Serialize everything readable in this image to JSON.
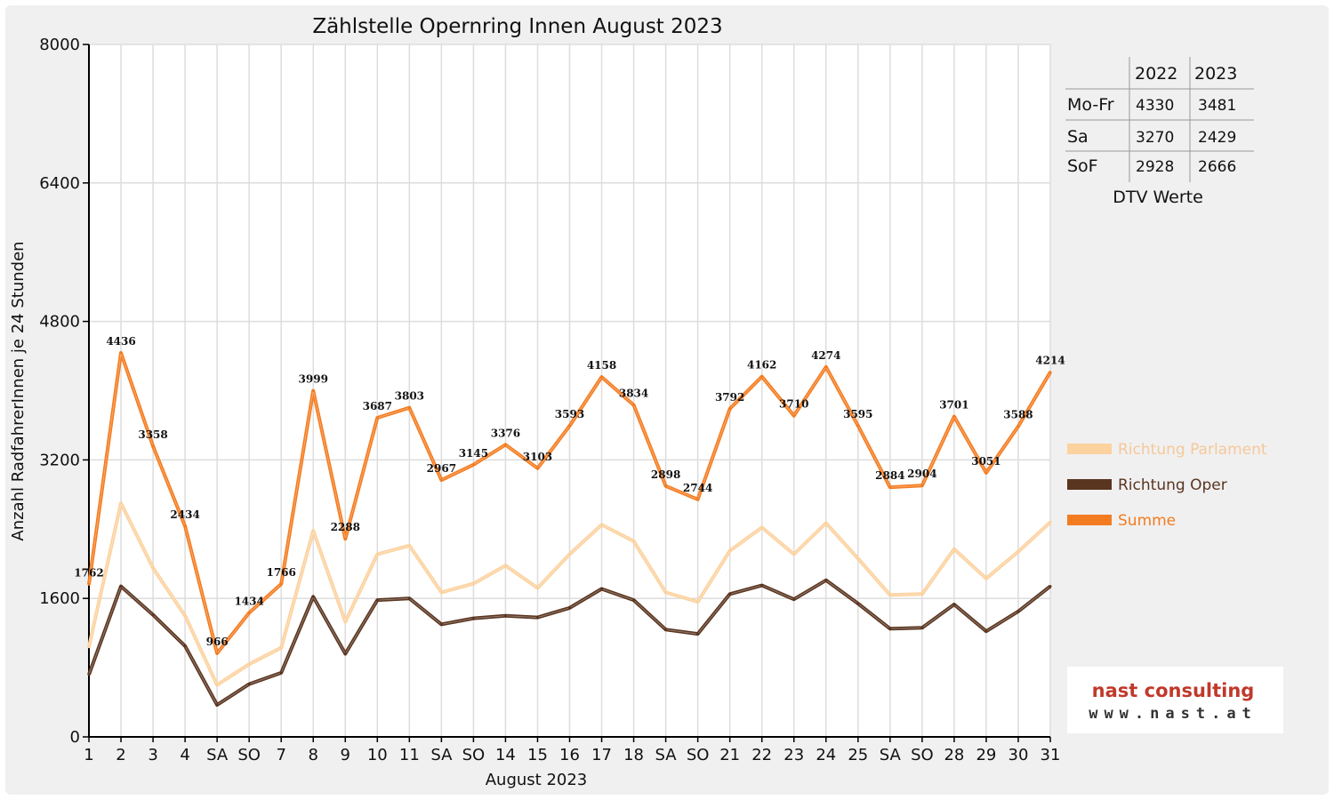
{
  "chart_data": {
    "type": "line",
    "title": "Zählstelle Opernring Innen August 2023",
    "xlabel": "August 2023",
    "ylabel": "Anzahl RadfahrerInnen je 24 Stunden",
    "ylim": [
      0,
      8000
    ],
    "yticks": [
      0,
      1600,
      3200,
      4800,
      6400,
      8000
    ],
    "grid": true,
    "legend_position": "right",
    "categories": [
      "1",
      "2",
      "3",
      "4",
      "SA",
      "SO",
      "7",
      "8",
      "9",
      "10",
      "11",
      "SA",
      "SO",
      "14",
      "15",
      "16",
      "17",
      "18",
      "SA",
      "SO",
      "21",
      "22",
      "23",
      "24",
      "25",
      "SA",
      "SO",
      "28",
      "29",
      "30",
      "31"
    ],
    "red_categories": [
      5,
      12,
      14,
      19,
      26
    ],
    "series": [
      {
        "name": "Richtung Parlament",
        "color": "#fcd29f",
        "values": [
          1040,
          2700,
          1950,
          1400,
          600,
          840,
          1030,
          2380,
          1330,
          2110,
          2210,
          1670,
          1770,
          1980,
          1720,
          2110,
          2450,
          2260,
          1670,
          1560,
          2150,
          2420,
          2110,
          2470,
          2060,
          1640,
          1650,
          2170,
          1830,
          2140,
          2480
        ]
      },
      {
        "name": "Richtung Oper",
        "color": "#5a3520",
        "values": [
          720,
          1740,
          1410,
          1050,
          370,
          610,
          740,
          1620,
          960,
          1580,
          1600,
          1300,
          1370,
          1400,
          1380,
          1490,
          1710,
          1580,
          1240,
          1190,
          1650,
          1750,
          1590,
          1810,
          1540,
          1250,
          1260,
          1530,
          1220,
          1450,
          1740
        ]
      },
      {
        "name": "Summe",
        "color": "#f47c20",
        "values": [
          1762,
          4436,
          3358,
          2434,
          966,
          1434,
          1766,
          3999,
          2288,
          3687,
          3803,
          2967,
          3145,
          3376,
          3103,
          3593,
          4158,
          3834,
          2898,
          2744,
          3792,
          4162,
          3710,
          4274,
          3595,
          2884,
          2904,
          3701,
          3051,
          3588,
          4214
        ]
      }
    ],
    "data_labels_series": "Summe",
    "dtv_table": {
      "title": "DTV Werte",
      "columns": [
        "",
        "2022",
        "2023"
      ],
      "rows": [
        [
          "Mo-Fr",
          "4330",
          "3481"
        ],
        [
          "Sa",
          "3270",
          "2429"
        ],
        [
          "SoF",
          "2928",
          "2666"
        ]
      ]
    }
  },
  "logo": {
    "line1": "nast consulting",
    "line2": "www.nast.at",
    "color1": "#c0392b",
    "color2": "#333333"
  },
  "colors": {
    "axis_text": "#111111",
    "red_text": "#e00000",
    "grid": "#dddddd"
  }
}
